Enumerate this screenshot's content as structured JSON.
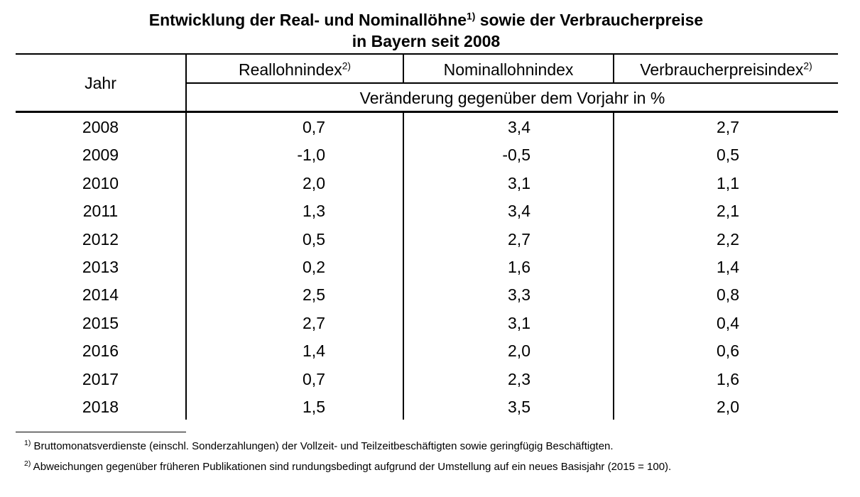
{
  "title": {
    "line1": "Entwicklung der Real- und Nominallöhne",
    "line1_sup": "1)",
    "line1_rest": " sowie der Verbraucherpreise",
    "line2": "in Bayern seit 2008"
  },
  "table": {
    "header": {
      "year": "Jahr",
      "col1": "Reallohnindex",
      "col1_sup": "2)",
      "col2": "Nominallohnindex",
      "col3": "Verbraucherpreisindex",
      "col3_sup": "2)",
      "subheader": "Veränderung gegenüber dem Vorjahr in %"
    },
    "rows": [
      {
        "year": "2008",
        "real": "0,7",
        "nominal": "3,4",
        "cpi": "2,7"
      },
      {
        "year": "2009",
        "real": "-1,0",
        "nominal": "-0,5",
        "cpi": "0,5"
      },
      {
        "year": "2010",
        "real": "2,0",
        "nominal": "3,1",
        "cpi": "1,1"
      },
      {
        "year": "2011",
        "real": "1,3",
        "nominal": "3,4",
        "cpi": "2,1"
      },
      {
        "year": "2012",
        "real": "0,5",
        "nominal": "2,7",
        "cpi": "2,2"
      },
      {
        "year": "2013",
        "real": "0,2",
        "nominal": "1,6",
        "cpi": "1,4"
      },
      {
        "year": "2014",
        "real": "2,5",
        "nominal": "3,3",
        "cpi": "0,8"
      },
      {
        "year": "2015",
        "real": "2,7",
        "nominal": "3,1",
        "cpi": "0,4"
      },
      {
        "year": "2016",
        "real": "1,4",
        "nominal": "2,0",
        "cpi": "0,6"
      },
      {
        "year": "2017",
        "real": "0,7",
        "nominal": "2,3",
        "cpi": "1,6"
      },
      {
        "year": "2018",
        "real": "1,5",
        "nominal": "3,5",
        "cpi": "2,0"
      }
    ]
  },
  "footnotes": [
    {
      "mark": "1)",
      "text": " Bruttomonatsverdienste (einschl. Sonderzahlungen) der Vollzeit- und Teilzeitbeschäftigten sowie geringfügig Beschäftigten."
    },
    {
      "mark": "2)",
      "text": " Abweichungen gegenüber früheren Publikationen sind rundungsbedingt aufgrund der Umstellung auf ein neues Basisjahr (2015 = 100)."
    }
  ]
}
